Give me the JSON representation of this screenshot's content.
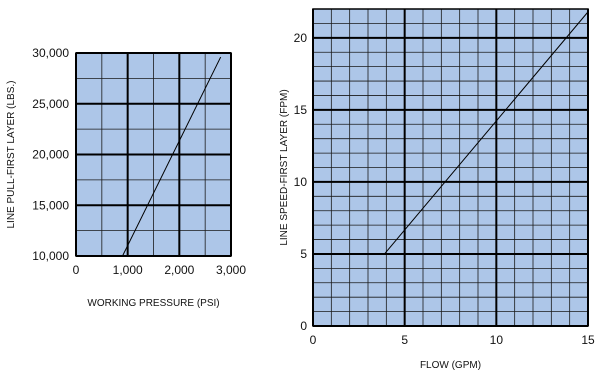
{
  "chart_data": [
    {
      "type": "line",
      "xlabel": "WORKING PRESSURE (PSI)",
      "ylabel": "LINE PULL-FIRST LAYER (LBS.)",
      "xlim": [
        0,
        3000
      ],
      "ylim": [
        10000,
        30000
      ],
      "xticks": [
        0,
        1000,
        2000,
        3000
      ],
      "xtick_labels": [
        "0",
        "1,000",
        "2,000",
        "3,000"
      ],
      "yticks": [
        10000,
        15000,
        20000,
        25000,
        30000
      ],
      "ytick_labels": [
        "10,000",
        "15,000",
        "20,000",
        "25,000",
        "30,000"
      ],
      "grid": true,
      "background": "#adc6e8",
      "series": [
        {
          "x": [
            900,
            2800
          ],
          "y": [
            10000,
            29600
          ]
        }
      ]
    },
    {
      "type": "line",
      "xlabel": "FLOW (GPM)",
      "ylabel": "LINE SPEED-FIRST LAYER (FPM)",
      "xlim": [
        0,
        15
      ],
      "ylim": [
        0,
        22
      ],
      "xticks": [
        0,
        5,
        10,
        15
      ],
      "xtick_labels": [
        "0",
        "5",
        "10",
        "15"
      ],
      "yticks": [
        0,
        5,
        10,
        15,
        20
      ],
      "ytick_labels": [
        "0",
        "5",
        "10",
        "15",
        "20"
      ],
      "grid": true,
      "background": "#adc6e8",
      "series": [
        {
          "x": [
            3.9,
            15
          ],
          "y": [
            5,
            21.8
          ]
        }
      ]
    }
  ]
}
